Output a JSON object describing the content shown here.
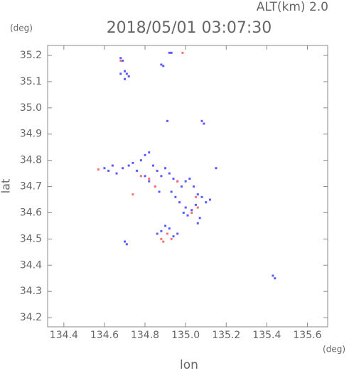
{
  "chart_data": {
    "type": "scatter",
    "title": "2018/05/01 03:07:30",
    "annotation": "ALT(km) 2.0",
    "y_unit": "(deg)",
    "x_unit": "(deg)",
    "xlabel": "lon",
    "ylabel": "lat",
    "xlim": [
      134.32,
      135.7
    ],
    "ylim": [
      34.165,
      35.238
    ],
    "xticks": [
      134.4,
      134.6,
      134.8,
      {
        "value": 135,
        "label": "135.0"
      },
      135.2,
      135.4,
      135.6
    ],
    "yticks": [
      34.2,
      34.3,
      34.4,
      34.5,
      34.6,
      34.7,
      34.8,
      34.9,
      {
        "value": 35,
        "label": "35.0"
      },
      35.1,
      35.2
    ],
    "series": [
      {
        "color": "#5a5aff",
        "x": [
          134.68,
          134.69,
          134.7,
          134.71,
          134.72,
          134.7,
          134.68,
          134.92,
          134.93,
          134.88,
          134.89,
          134.91,
          135.08,
          135.09,
          134.6,
          134.62,
          134.64,
          134.66,
          134.69,
          134.72,
          134.74,
          134.76,
          134.78,
          134.8,
          134.82,
          134.84,
          134.86,
          134.88,
          134.9,
          134.92,
          134.94,
          134.96,
          134.98,
          135.0,
          135.02,
          135.04,
          135.06,
          135.08,
          135.1,
          135.12,
          134.8,
          134.82,
          134.85,
          134.87,
          134.93,
          134.95,
          134.97,
          135.0,
          135.03,
          135.05,
          135.07,
          134.99,
          135.01,
          135.15,
          134.86,
          134.88,
          134.9,
          134.92,
          134.94,
          134.96,
          135.06,
          134.7,
          134.71,
          135.43,
          135.44
        ],
        "y": [
          35.19,
          35.18,
          35.14,
          35.13,
          35.12,
          35.11,
          35.13,
          35.21,
          35.21,
          35.165,
          35.16,
          34.95,
          34.95,
          34.94,
          34.77,
          34.76,
          34.78,
          34.75,
          34.77,
          34.78,
          34.79,
          34.76,
          34.8,
          34.82,
          34.83,
          34.78,
          34.76,
          34.74,
          34.77,
          34.75,
          34.73,
          34.72,
          34.7,
          34.72,
          34.73,
          34.7,
          34.67,
          34.66,
          34.64,
          34.65,
          34.74,
          34.72,
          34.7,
          34.68,
          34.68,
          34.66,
          34.64,
          34.62,
          34.61,
          34.63,
          34.58,
          34.6,
          34.59,
          34.77,
          34.52,
          34.53,
          34.55,
          34.54,
          34.51,
          34.52,
          34.56,
          34.49,
          34.48,
          34.36,
          34.35
        ]
      },
      {
        "color": "#ff7070",
        "x": [
          134.68,
          134.985,
          134.57,
          134.78,
          134.82,
          134.85,
          135.05,
          135.03,
          134.88,
          134.89,
          134.74,
          134.96,
          135.06,
          134.91,
          134.93
        ],
        "y": [
          35.18,
          35.21,
          34.765,
          34.74,
          34.73,
          34.7,
          34.66,
          34.6,
          34.5,
          34.49,
          34.67,
          34.72,
          34.62,
          34.52,
          34.5
        ]
      }
    ]
  }
}
